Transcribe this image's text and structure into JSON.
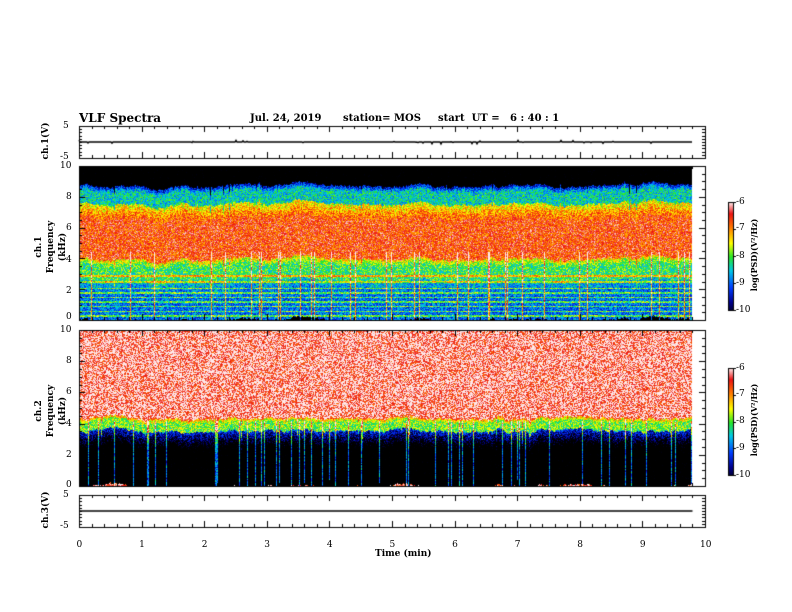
{
  "header": {
    "title": "VLF Spectra",
    "date": "Jul. 24, 2019",
    "station": "station= MOS",
    "start": "start  UT =   6 : 40 : 1"
  },
  "chart_data": [
    {
      "type": "line",
      "panel": "ch1-waveform",
      "ylabel": "ch.1(V)",
      "ylim": [
        -5,
        5
      ],
      "yticks": [
        "5",
        "-5"
      ],
      "x": [
        0,
        9.8
      ],
      "y": [
        0,
        0
      ],
      "xlim": [
        0,
        10
      ]
    },
    {
      "type": "heatmap",
      "panel": "ch1-spectrogram",
      "ylabel": "ch.1\nFrequency (kHz)",
      "ylim": [
        0,
        10
      ],
      "yticks": [
        "0",
        "2",
        "4",
        "6",
        "8",
        "10"
      ],
      "xlim": [
        0,
        10
      ],
      "data_end_min": 9.8,
      "colorbar": {
        "label": "log(PSD)(V²/Hz)",
        "range": [
          -10,
          -6
        ],
        "ticks": [
          "-6",
          "-7",
          "-8",
          "-9",
          "-10"
        ]
      },
      "bands_khz": [
        {
          "from": 0.0,
          "to": 2.6,
          "level": -8.8
        },
        {
          "from": 2.6,
          "to": 4.0,
          "level": -8.0
        },
        {
          "from": 4.0,
          "to": 7.6,
          "level": -6.6
        },
        {
          "from": 7.6,
          "to": 8.8,
          "level": -8.3
        },
        {
          "from": 8.8,
          "to": 10.0,
          "level": -10.5
        }
      ]
    },
    {
      "type": "heatmap",
      "panel": "ch2-spectrogram",
      "ylabel": "ch.2\nFrequency (kHz)",
      "ylim": [
        0,
        10
      ],
      "yticks": [
        "0",
        "2",
        "4",
        "6",
        "8",
        "10"
      ],
      "xlim": [
        0,
        10
      ],
      "data_end_min": 9.8,
      "colorbar": {
        "label": "log(PSD)(V²/Hz)",
        "range": [
          -10,
          -6
        ],
        "ticks": [
          "-6",
          "-7",
          "-8",
          "-9",
          "-10"
        ]
      },
      "bands_khz": [
        {
          "from": 0.0,
          "to": 3.6,
          "level": -10.5
        },
        {
          "from": 3.6,
          "to": 4.4,
          "level": -7.8
        },
        {
          "from": 4.4,
          "to": 10.0,
          "level": -6.3
        }
      ]
    },
    {
      "type": "line",
      "panel": "ch3-waveform",
      "ylabel": "ch.3(V)",
      "ylim": [
        -5,
        5
      ],
      "yticks": [
        "5",
        "-5"
      ],
      "x": [
        0,
        9.8
      ],
      "y": [
        0,
        0
      ],
      "xlim": [
        0,
        10
      ]
    }
  ],
  "xaxis": {
    "label": "Time (min)",
    "ticks": [
      "0",
      "1",
      "2",
      "3",
      "4",
      "5",
      "6",
      "7",
      "8",
      "9",
      "10"
    ]
  }
}
